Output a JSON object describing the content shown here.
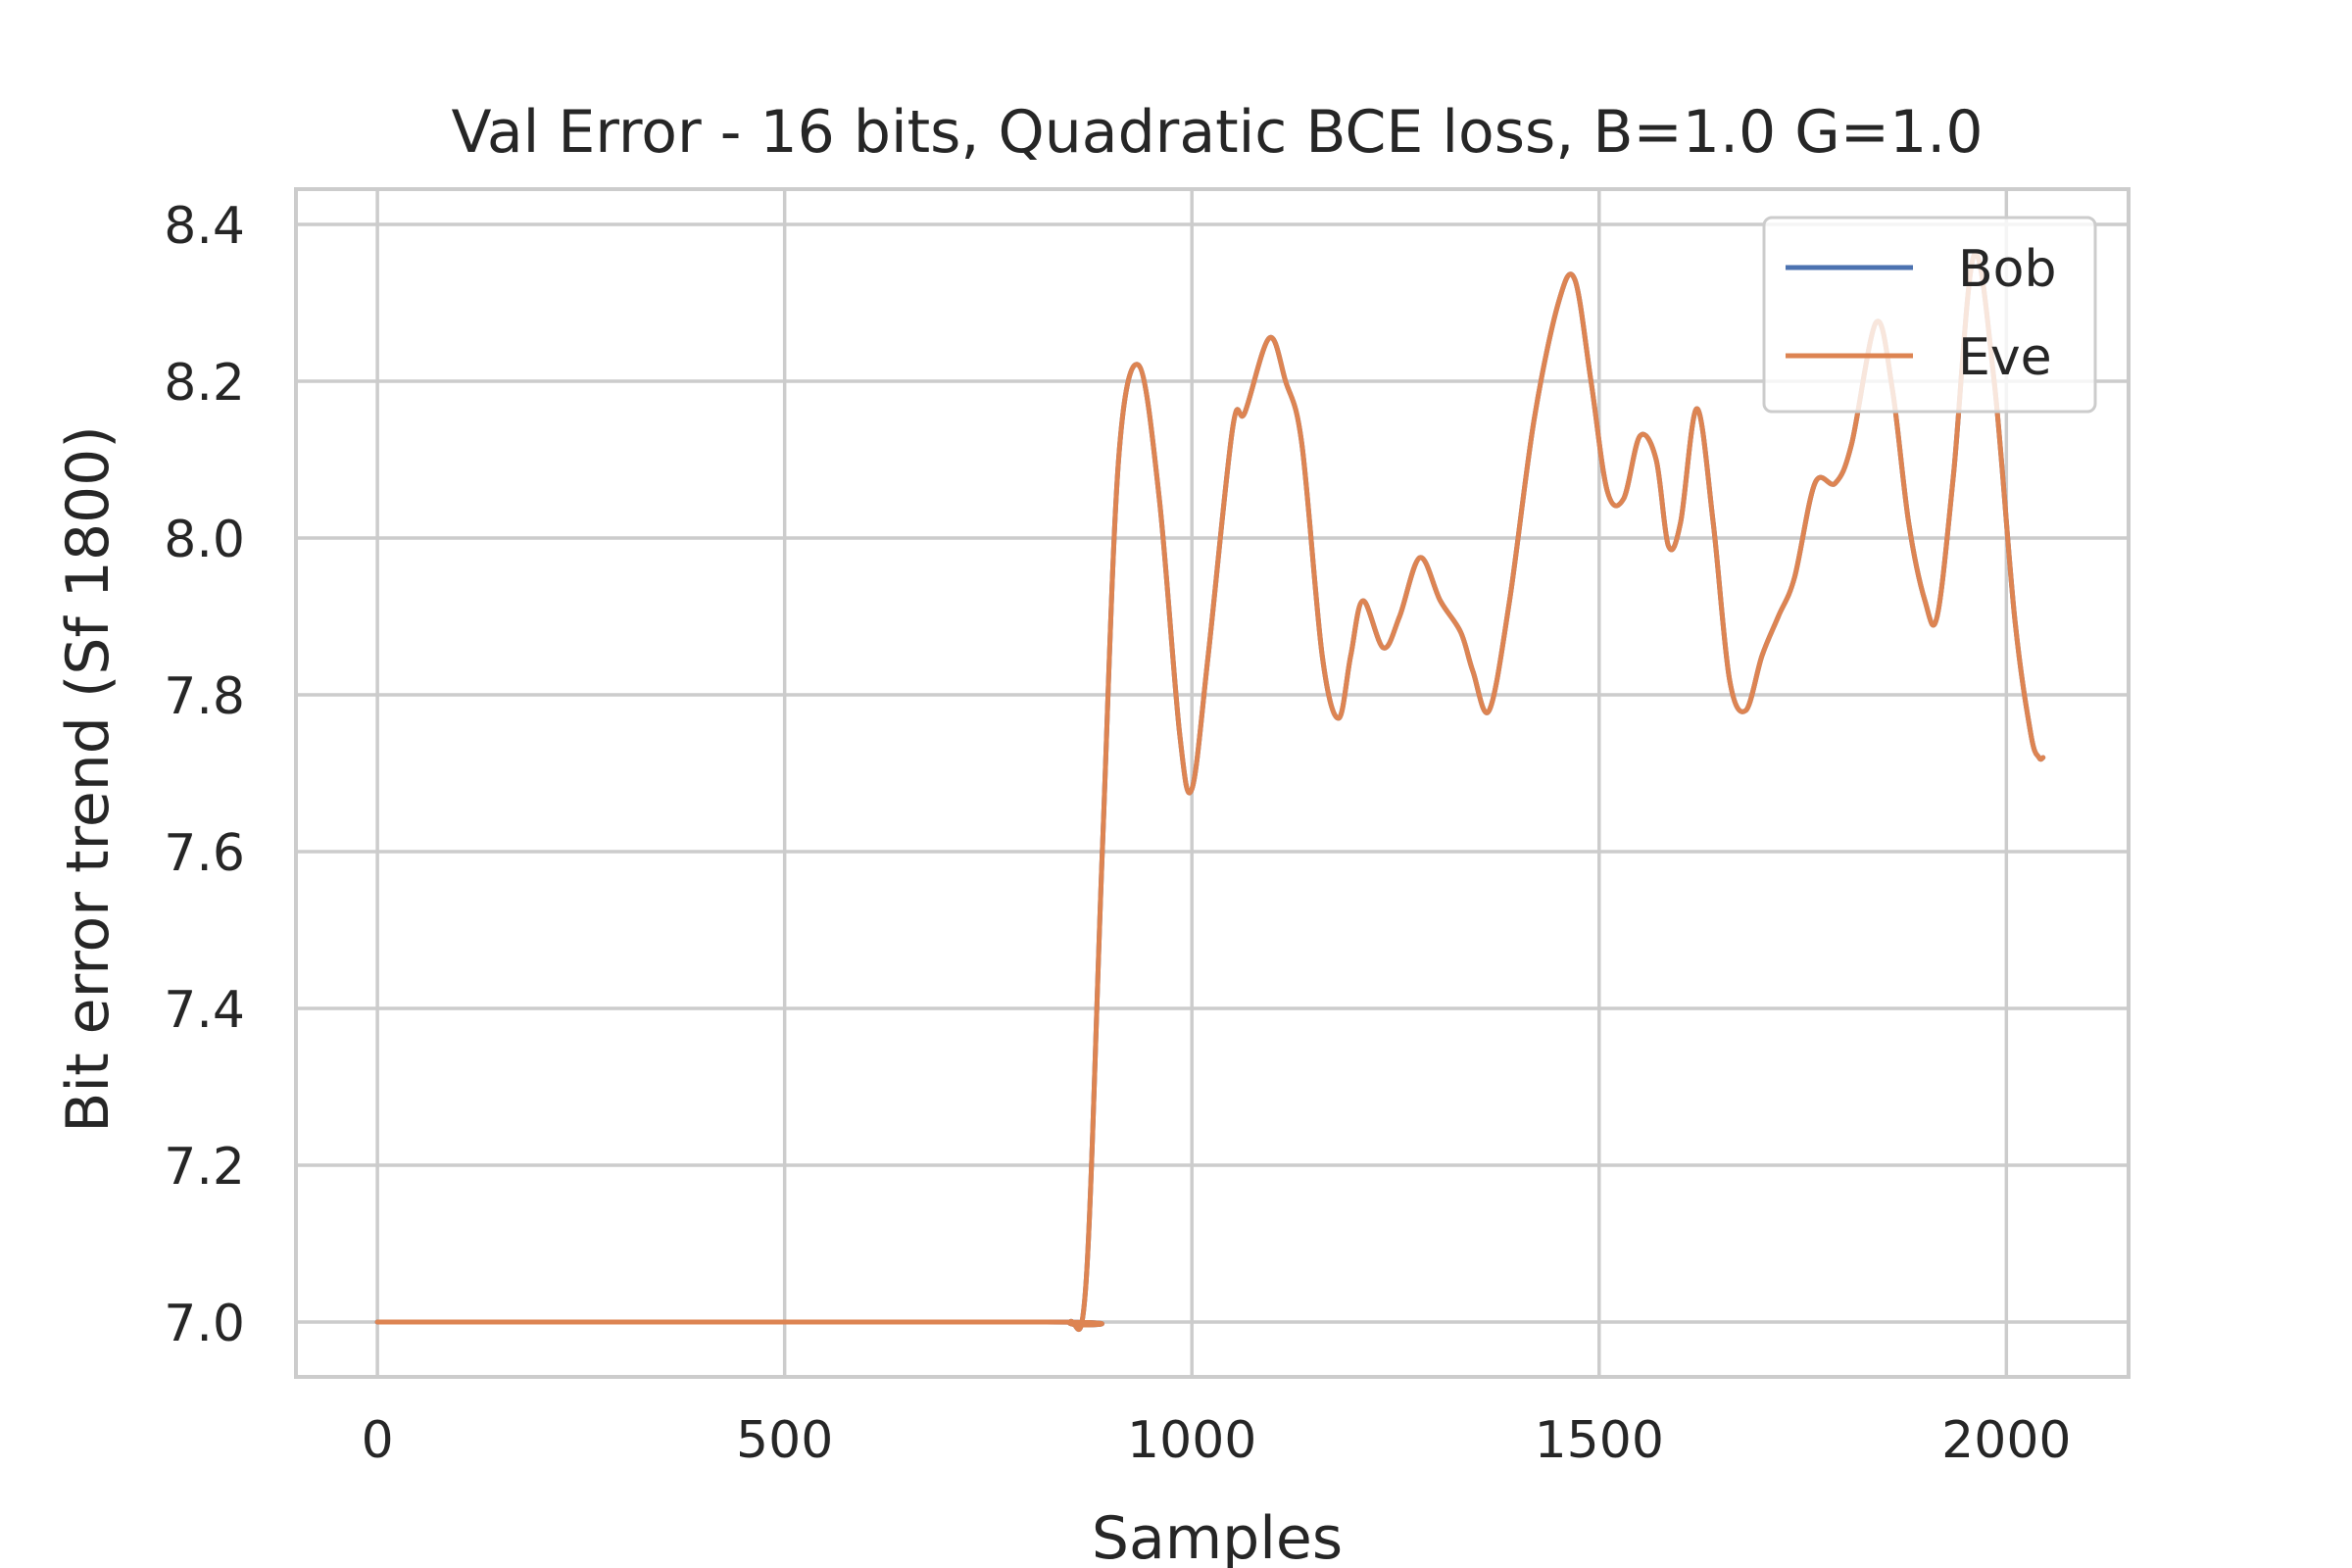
{
  "chart_data": {
    "type": "line",
    "title": "Val Error - 16 bits, Quadratic BCE loss, B=1.0 G=1.0",
    "xlabel": "Samples",
    "ylabel": "Bit error trend (Sf 1800)",
    "xlim": [
      -100,
      2150
    ],
    "ylim": [
      6.93,
      8.445
    ],
    "xticks": [
      0,
      500,
      1000,
      1500,
      2000
    ],
    "yticks": [
      7.0,
      7.2,
      7.4,
      7.6,
      7.8,
      8.0,
      8.2,
      8.4
    ],
    "xtick_labels": [
      "0",
      "500",
      "1000",
      "1500",
      "2000"
    ],
    "ytick_labels": [
      "7.0",
      "7.2",
      "7.4",
      "7.6",
      "7.8",
      "8.0",
      "8.2",
      "8.4"
    ],
    "grid": true,
    "legend_position": "top-right",
    "series": [
      {
        "name": "Bob",
        "color": "#4c72b0",
        "x": [
          0,
          820,
          850,
          870,
          890,
          910,
          935,
          960,
          985,
          1000,
          1020,
          1050,
          1065,
          1095,
          1115,
          1135,
          1160,
          1180,
          1195,
          1210,
          1235,
          1255,
          1280,
          1305,
          1330,
          1345,
          1365,
          1390,
          1420,
          1450,
          1470,
          1490,
          1510,
          1530,
          1550,
          1570,
          1585,
          1600,
          1620,
          1640,
          1660,
          1680,
          1700,
          1720,
          1740,
          1765,
          1790,
          1810,
          1840,
          1860,
          1880,
          1900,
          1915,
          1935,
          1960,
          1985,
          2010,
          2030,
          2040,
          2045
        ],
        "values": [
          7.0,
          7.0,
          7.0,
          7.05,
          7.6,
          8.1,
          8.22,
          8.05,
          7.75,
          7.68,
          7.85,
          8.14,
          8.16,
          8.255,
          8.2,
          8.12,
          7.85,
          7.77,
          7.85,
          7.92,
          7.86,
          7.9,
          7.975,
          7.92,
          7.88,
          7.83,
          7.78,
          7.92,
          8.15,
          8.3,
          8.33,
          8.2,
          8.06,
          8.05,
          8.13,
          8.1,
          7.99,
          8.02,
          8.165,
          8.02,
          7.82,
          7.78,
          7.85,
          7.9,
          7.95,
          8.07,
          8.07,
          8.12,
          8.275,
          8.19,
          8.02,
          7.92,
          7.9,
          8.08,
          8.36,
          8.2,
          7.9,
          7.75,
          7.72,
          7.72
        ]
      },
      {
        "name": "Eve",
        "color": "#dd8452",
        "x": [
          0,
          820,
          850,
          870,
          890,
          910,
          935,
          960,
          985,
          1000,
          1020,
          1050,
          1065,
          1095,
          1115,
          1135,
          1160,
          1180,
          1195,
          1210,
          1235,
          1255,
          1280,
          1305,
          1330,
          1345,
          1365,
          1390,
          1420,
          1450,
          1470,
          1490,
          1510,
          1530,
          1550,
          1570,
          1585,
          1600,
          1620,
          1640,
          1660,
          1680,
          1700,
          1720,
          1740,
          1765,
          1790,
          1810,
          1840,
          1860,
          1880,
          1900,
          1915,
          1935,
          1960,
          1985,
          2010,
          2030,
          2040,
          2045
        ],
        "values": [
          7.0,
          7.0,
          7.0,
          7.05,
          7.6,
          8.1,
          8.22,
          8.05,
          7.75,
          7.68,
          7.85,
          8.14,
          8.16,
          8.255,
          8.2,
          8.12,
          7.85,
          7.77,
          7.85,
          7.92,
          7.86,
          7.9,
          7.975,
          7.92,
          7.88,
          7.83,
          7.78,
          7.92,
          8.15,
          8.3,
          8.33,
          8.2,
          8.06,
          8.05,
          8.13,
          8.1,
          7.99,
          8.02,
          8.165,
          8.02,
          7.82,
          7.78,
          7.85,
          7.9,
          7.95,
          8.07,
          8.07,
          8.12,
          8.275,
          8.19,
          8.02,
          7.92,
          7.9,
          8.08,
          8.36,
          8.2,
          7.9,
          7.75,
          7.72,
          7.72
        ]
      }
    ]
  }
}
